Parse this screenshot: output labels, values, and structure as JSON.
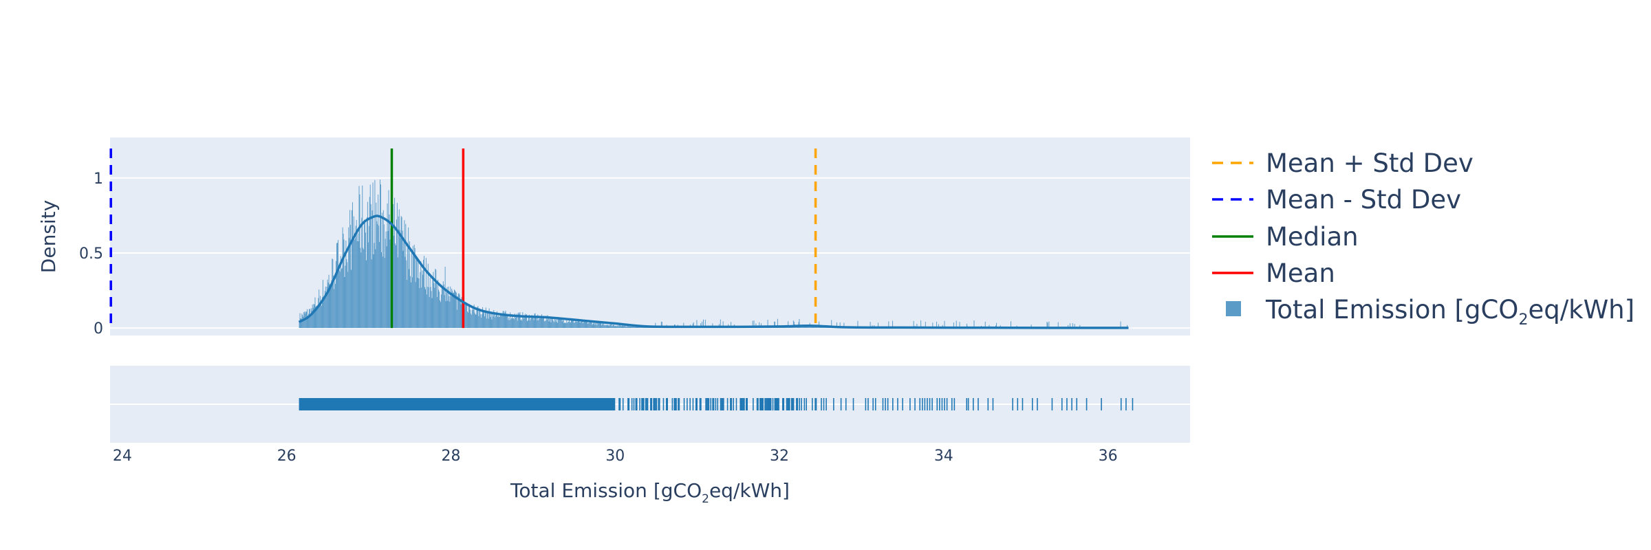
{
  "chart_data": {
    "type": "histogram",
    "xlabel": {
      "pre": "Total Emission [gCO",
      "sub": "2",
      "post": "eq/kWh]"
    },
    "ylabel": "Density",
    "xlim": [
      23.85,
      37.0
    ],
    "ylim": [
      -0.05,
      1.27
    ],
    "x_ticks": [
      24,
      26,
      28,
      30,
      32,
      34,
      36
    ],
    "y_ticks": [
      0,
      0.5,
      1
    ],
    "y_tick_labels": [
      "0",
      "0.5",
      "1"
    ],
    "grid": true,
    "legend_position": "right",
    "colors": {
      "plot_bg": "#E5ECF6",
      "bars": "#5B9BC8",
      "kde": "#1f77b4",
      "rug": "#1f77b4",
      "mean": "#FF0000",
      "median": "#008000",
      "mean_plus_std": "#FFA500",
      "mean_minus_std": "#0000FF"
    },
    "statistics": {
      "mean": 28.15,
      "median": 27.28,
      "mean_plus_std": 32.44,
      "mean_minus_std": 23.86
    },
    "data_range": [
      26.15,
      36.3
    ],
    "kde_curve": {
      "x": [
        26.15,
        26.3,
        26.5,
        26.7,
        26.9,
        27.05,
        27.15,
        27.3,
        27.5,
        27.7,
        27.9,
        28.1,
        28.3,
        28.5,
        28.8,
        29.2,
        29.6,
        30.0,
        30.4,
        31.0,
        31.5,
        32.0,
        32.4,
        32.8,
        33.5,
        34.5,
        35.5,
        36.25
      ],
      "y": [
        0.04,
        0.09,
        0.24,
        0.48,
        0.68,
        0.74,
        0.74,
        0.68,
        0.53,
        0.38,
        0.27,
        0.19,
        0.13,
        0.1,
        0.08,
        0.07,
        0.05,
        0.03,
        0.01,
        0.008,
        0.008,
        0.01,
        0.015,
        0.005,
        0.003,
        0.002,
        0.001,
        0.001
      ]
    },
    "histogram_profile": {
      "x": [
        26.15,
        26.3,
        26.5,
        26.7,
        26.9,
        27.1,
        27.3,
        27.5,
        27.7,
        27.9,
        28.1,
        28.3,
        28.5,
        29.0,
        29.5,
        30.0,
        30.5,
        31.5,
        32.4,
        33.0,
        34.0,
        35.0,
        36.3
      ],
      "y": [
        0.08,
        0.13,
        0.33,
        0.6,
        0.78,
        0.82,
        0.72,
        0.55,
        0.38,
        0.27,
        0.2,
        0.13,
        0.1,
        0.08,
        0.05,
        0.02,
        0.01,
        0.01,
        0.015,
        0.003,
        0.002,
        0.001,
        0.001
      ]
    },
    "legend": [
      {
        "label": "Mean + Std Dev",
        "kind": "dash",
        "color": "#FFA500"
      },
      {
        "label": "Mean - Std Dev",
        "kind": "dash",
        "color": "#0000FF"
      },
      {
        "label": "Median",
        "kind": "line",
        "color": "#008000"
      },
      {
        "label": "Mean",
        "kind": "line",
        "color": "#FF0000"
      },
      {
        "label_pre": "Total Emission [gCO",
        "label_sub": "2",
        "label_post": "eq/kWh]",
        "kind": "box",
        "color": "#5B9BC8"
      }
    ]
  }
}
